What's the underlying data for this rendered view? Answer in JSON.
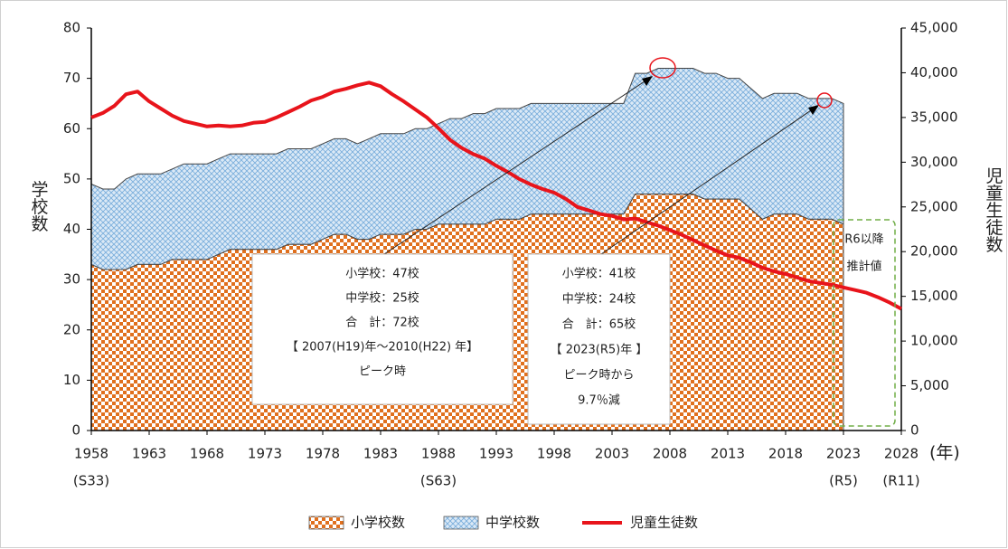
{
  "chart_data": {
    "type": "stacked_area_line",
    "x_label": "(年)",
    "y_label": "学校数",
    "y2_label": "児童生徒数",
    "x": [
      1958,
      1959,
      1960,
      1961,
      1962,
      1963,
      1964,
      1965,
      1966,
      1967,
      1968,
      1969,
      1970,
      1971,
      1972,
      1973,
      1974,
      1975,
      1976,
      1977,
      1978,
      1979,
      1980,
      1981,
      1982,
      1983,
      1984,
      1985,
      1986,
      1987,
      1988,
      1989,
      1990,
      1991,
      1992,
      1993,
      1994,
      1995,
      1996,
      1997,
      1998,
      1999,
      2000,
      2001,
      2002,
      2003,
      2004,
      2005,
      2006,
      2007,
      2008,
      2009,
      2010,
      2011,
      2012,
      2013,
      2014,
      2015,
      2016,
      2017,
      2018,
      2019,
      2020,
      2021,
      2022,
      2023,
      2024,
      2025,
      2026,
      2027,
      2028
    ],
    "series": [
      {
        "name": "小学校数",
        "color": "#e0701e",
        "axis": "y",
        "values": [
          33,
          32,
          32,
          32,
          33,
          33,
          33,
          34,
          34,
          34,
          34,
          35,
          36,
          36,
          36,
          36,
          36,
          37,
          37,
          37,
          38,
          39,
          39,
          38,
          38,
          39,
          39,
          39,
          40,
          40,
          41,
          41,
          41,
          41,
          41,
          42,
          42,
          42,
          43,
          43,
          43,
          43,
          43,
          43,
          43,
          43,
          43,
          47,
          47,
          47,
          47,
          47,
          47,
          46,
          46,
          46,
          46,
          44,
          42,
          43,
          43,
          43,
          42,
          42,
          42,
          41,
          null,
          null,
          null,
          null,
          null
        ]
      },
      {
        "name": "中学校数",
        "color": "#9cc3e6",
        "axis": "y",
        "values": [
          16,
          16,
          16,
          18,
          18,
          18,
          18,
          18,
          19,
          19,
          19,
          19,
          19,
          19,
          19,
          19,
          19,
          19,
          19,
          19,
          19,
          19,
          19,
          19,
          20,
          20,
          20,
          20,
          20,
          20,
          20,
          21,
          21,
          22,
          22,
          22,
          22,
          22,
          22,
          22,
          22,
          22,
          22,
          22,
          22,
          22,
          22,
          24,
          24,
          25,
          25,
          25,
          25,
          25,
          25,
          24,
          24,
          24,
          24,
          24,
          24,
          24,
          24,
          24,
          24,
          24,
          null,
          null,
          null,
          null,
          null
        ]
      },
      {
        "name": "児童生徒数",
        "color": "#e8141b",
        "axis": "y2",
        "values": [
          35000,
          35500,
          36300,
          37600,
          37900,
          36800,
          36000,
          35200,
          34600,
          34300,
          34000,
          34100,
          34000,
          34100,
          34400,
          34500,
          35000,
          35600,
          36200,
          36900,
          37300,
          37900,
          38200,
          38600,
          38900,
          38500,
          37600,
          36800,
          35900,
          35000,
          33800,
          32500,
          31600,
          30900,
          30400,
          29600,
          28900,
          28100,
          27500,
          27000,
          26600,
          25900,
          25000,
          24600,
          24200,
          24000,
          23600,
          23700,
          23300,
          22900,
          22400,
          21900,
          21300,
          20700,
          20100,
          19600,
          19300,
          18800,
          18200,
          17800,
          17500,
          17100,
          16700,
          16500,
          16300,
          16000,
          15700,
          15400,
          14900,
          14300,
          13600
        ]
      }
    ],
    "xlim": [
      1958,
      2028
    ],
    "xticks": [
      1958,
      1963,
      1968,
      1973,
      1978,
      1983,
      1988,
      1993,
      1998,
      2003,
      2008,
      2013,
      2018,
      2023,
      2028
    ],
    "x_sublabels": [
      {
        "value": 1958,
        "label": "(S33)"
      },
      {
        "value": 1988,
        "label": "(S63)"
      },
      {
        "value": 2023,
        "label": "(R5)"
      },
      {
        "value": 2028,
        "label": "(R11)"
      }
    ],
    "ylim": [
      0,
      80
    ],
    "yticks": [
      0,
      10,
      20,
      30,
      40,
      50,
      60,
      70,
      80
    ],
    "y2lim": [
      0,
      45000
    ],
    "y2ticks": [
      0,
      {
        "value": 5000,
        "label": "5,000"
      },
      {
        "value": 10000,
        "label": "10,000"
      },
      {
        "value": 15000,
        "label": "15,000"
      },
      {
        "value": 20000,
        "label": "20,000"
      },
      {
        "value": 25000,
        "label": "25,000"
      },
      {
        "value": 30000,
        "label": "30,000"
      },
      {
        "value": 35000,
        "label": "35,000"
      },
      {
        "value": 40000,
        "label": "40,000"
      },
      {
        "value": 45000,
        "label": "45,000"
      }
    ],
    "legend": "bottom",
    "annotations": [
      {
        "lines": [
          "小学校：47校",
          "中学校：25校",
          "合　計：72校",
          "【 2007(H19)年～2010(H22) 年】",
          "ピーク時"
        ]
      },
      {
        "lines": [
          "小学校：41校",
          "中学校：24校",
          "合　計：65校",
          "【 2023(R5)年 】",
          "ピーク時から",
          "9.7％減"
        ]
      },
      {
        "lines": [
          "R6以降",
          "推計値"
        ]
      }
    ]
  }
}
